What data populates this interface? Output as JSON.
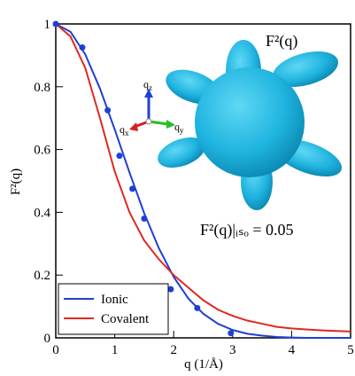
{
  "chart_data": {
    "type": "line",
    "x_label": "q (1/Å)",
    "y_label": "F²(q)",
    "xlim": [
      0,
      5
    ],
    "xticks": [
      0,
      1,
      2,
      3,
      4,
      5
    ],
    "ylim": [
      0,
      1
    ],
    "yticks": [
      0,
      0.2,
      0.4,
      0.6,
      0.8,
      1
    ],
    "legend": "bottom-left",
    "x": [
      0,
      0.25,
      0.5,
      0.75,
      1,
      1.25,
      1.5,
      1.75,
      2,
      2.25,
      2.5,
      2.75,
      3,
      3.25,
      3.5,
      3.75,
      4,
      4.25,
      4.5,
      4.75,
      5
    ],
    "series": [
      {
        "name": "Ionic",
        "color": "#1f3fd6",
        "values": [
          1,
          0.975,
          0.903,
          0.794,
          0.664,
          0.527,
          0.397,
          0.285,
          0.194,
          0.125,
          0.077,
          0.045,
          0.025,
          0.013,
          0.007,
          0.003,
          0.001,
          0,
          0,
          0,
          0
        ]
      },
      {
        "name": "Covalent",
        "color": "#e0281e",
        "values": [
          1,
          0.96,
          0.86,
          0.7,
          0.53,
          0.4,
          0.31,
          0.25,
          0.2,
          0.16,
          0.12,
          0.09,
          0.07,
          0.055,
          0.045,
          0.035,
          0.03,
          0.027,
          0.024,
          0.022,
          0.02
        ]
      }
    ],
    "points": {
      "color": "#1f3fd6",
      "x": [
        0,
        0.45,
        0.88,
        1.08,
        1.3,
        1.5,
        1.95,
        2.4,
        2.97
      ],
      "values": [
        1,
        0.925,
        0.725,
        0.58,
        0.475,
        0.38,
        0.155,
        0.095,
        0.015
      ]
    },
    "annotations": [
      "F²(q)",
      "F²(q)|ᵢₛₒ = 0.05"
    ],
    "inset_axes": [
      {
        "base": "q",
        "sub": "z"
      },
      {
        "base": "q",
        "sub": "y"
      },
      {
        "base": "q",
        "sub": "x"
      }
    ]
  }
}
